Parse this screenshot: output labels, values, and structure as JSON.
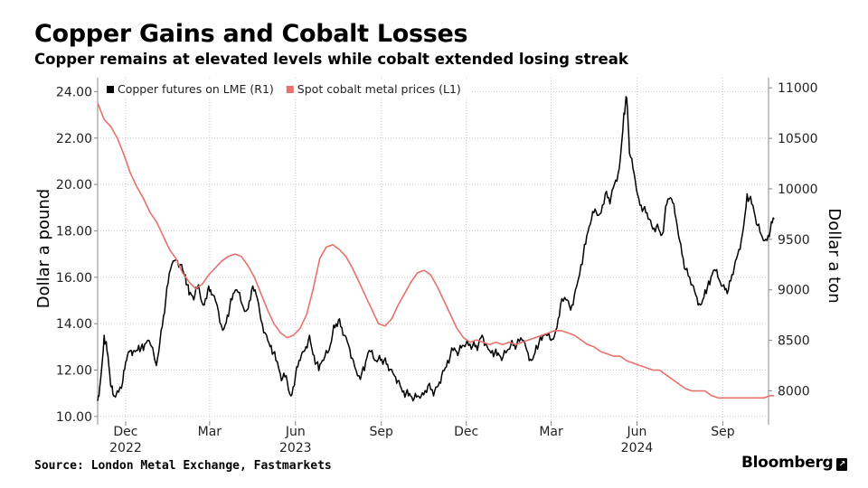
{
  "header": {
    "title": "Copper Gains and Cobalt Losses",
    "subtitle": "Copper remains at elevated levels while cobalt extended losing streak"
  },
  "footer": {
    "source": "Source: London Metal Exchange, Fastmarkets",
    "brand": "Bloomberg",
    "brand_mark": "↗"
  },
  "chart_data": {
    "type": "line",
    "grid": true,
    "legend_placement": "top-left",
    "left_axis": {
      "label": "Dollar a pound",
      "range": [
        9.8,
        24.6
      ],
      "ticks": [
        "10.00",
        "12.00",
        "14.00",
        "16.00",
        "18.00",
        "20.00",
        "22.00",
        "24.00"
      ]
    },
    "right_axis": {
      "label": "Dollar a ton",
      "range": [
        7700,
        11100
      ],
      "ticks": [
        "8000",
        "8500",
        "9000",
        "9500",
        "10000",
        "10500",
        "11000"
      ]
    },
    "x_axis": {
      "range": [
        "2022-11-01",
        "2024-10-20"
      ],
      "ticks": [
        {
          "date": "2022-12-01",
          "label": "Dec",
          "year": "2022"
        },
        {
          "date": "2023-03-01",
          "label": "Mar",
          "year": ""
        },
        {
          "date": "2023-06-01",
          "label": "Jun",
          "year": "2023"
        },
        {
          "date": "2023-09-01",
          "label": "Sep",
          "year": ""
        },
        {
          "date": "2023-12-01",
          "label": "Dec",
          "year": ""
        },
        {
          "date": "2024-03-01",
          "label": "Mar",
          "year": ""
        },
        {
          "date": "2024-06-01",
          "label": "Jun",
          "year": "2024"
        },
        {
          "date": "2024-09-01",
          "label": "Sep",
          "year": ""
        }
      ]
    },
    "series": [
      {
        "name": "Copper futures on LME (R1)",
        "axis": "right",
        "color": "#000000",
        "points": [
          [
            "2022-11-01",
            7900
          ],
          [
            "2022-11-04",
            8100
          ],
          [
            "2022-11-08",
            8550
          ],
          [
            "2022-11-11",
            8400
          ],
          [
            "2022-11-15",
            8050
          ],
          [
            "2022-11-18",
            7950
          ],
          [
            "2022-11-22",
            8000
          ],
          [
            "2022-11-28",
            8100
          ],
          [
            "2022-12-02",
            8300
          ],
          [
            "2022-12-06",
            8400
          ],
          [
            "2022-12-10",
            8400
          ],
          [
            "2022-12-15",
            8450
          ],
          [
            "2022-12-20",
            8400
          ],
          [
            "2022-12-26",
            8500
          ],
          [
            "2023-01-03",
            8250
          ],
          [
            "2023-01-08",
            8600
          ],
          [
            "2023-01-13",
            8900
          ],
          [
            "2023-01-18",
            9200
          ],
          [
            "2023-01-24",
            9300
          ],
          [
            "2023-01-30",
            9250
          ],
          [
            "2023-02-03",
            9150
          ],
          [
            "2023-02-07",
            8950
          ],
          [
            "2023-02-12",
            8900
          ],
          [
            "2023-02-17",
            9050
          ],
          [
            "2023-02-22",
            8850
          ],
          [
            "2023-02-27",
            9000
          ],
          [
            "2023-03-03",
            8950
          ],
          [
            "2023-03-09",
            8850
          ],
          [
            "2023-03-15",
            8600
          ],
          [
            "2023-03-20",
            8750
          ],
          [
            "2023-03-25",
            8900
          ],
          [
            "2023-03-30",
            9000
          ],
          [
            "2023-04-05",
            8850
          ],
          [
            "2023-04-10",
            8800
          ],
          [
            "2023-04-15",
            9000
          ],
          [
            "2023-04-20",
            8950
          ],
          [
            "2023-04-25",
            8700
          ],
          [
            "2023-05-01",
            8550
          ],
          [
            "2023-05-06",
            8450
          ],
          [
            "2023-05-11",
            8300
          ],
          [
            "2023-05-17",
            8100
          ],
          [
            "2023-05-22",
            8150
          ],
          [
            "2023-05-27",
            7950
          ],
          [
            "2023-06-01",
            8150
          ],
          [
            "2023-06-06",
            8300
          ],
          [
            "2023-06-11",
            8400
          ],
          [
            "2023-06-16",
            8550
          ],
          [
            "2023-06-21",
            8350
          ],
          [
            "2023-06-26",
            8200
          ],
          [
            "2023-07-01",
            8300
          ],
          [
            "2023-07-07",
            8400
          ],
          [
            "2023-07-12",
            8650
          ],
          [
            "2023-07-17",
            8700
          ],
          [
            "2023-07-22",
            8550
          ],
          [
            "2023-07-28",
            8450
          ],
          [
            "2023-08-02",
            8300
          ],
          [
            "2023-08-08",
            8150
          ],
          [
            "2023-08-14",
            8200
          ],
          [
            "2023-08-19",
            8400
          ],
          [
            "2023-08-25",
            8300
          ],
          [
            "2023-08-30",
            8350
          ],
          [
            "2023-09-04",
            8300
          ],
          [
            "2023-09-09",
            8200
          ],
          [
            "2023-09-15",
            8150
          ],
          [
            "2023-09-20",
            8100
          ],
          [
            "2023-09-25",
            8000
          ],
          [
            "2023-09-30",
            7950
          ],
          [
            "2023-10-05",
            7900
          ],
          [
            "2023-10-10",
            7950
          ],
          [
            "2023-10-15",
            7980
          ],
          [
            "2023-10-21",
            8050
          ],
          [
            "2023-10-27",
            7950
          ],
          [
            "2023-11-01",
            8050
          ],
          [
            "2023-11-06",
            8200
          ],
          [
            "2023-11-11",
            8300
          ],
          [
            "2023-11-17",
            8400
          ],
          [
            "2023-11-22",
            8350
          ],
          [
            "2023-11-27",
            8450
          ],
          [
            "2023-12-02",
            8500
          ],
          [
            "2023-12-08",
            8450
          ],
          [
            "2023-12-13",
            8400
          ],
          [
            "2023-12-18",
            8550
          ],
          [
            "2023-12-23",
            8450
          ],
          [
            "2023-12-29",
            8400
          ],
          [
            "2024-01-03",
            8350
          ],
          [
            "2024-01-08",
            8300
          ],
          [
            "2024-01-14",
            8400
          ],
          [
            "2024-01-19",
            8500
          ],
          [
            "2024-01-24",
            8450
          ],
          [
            "2024-01-30",
            8500
          ],
          [
            "2024-02-04",
            8400
          ],
          [
            "2024-02-09",
            8300
          ],
          [
            "2024-02-14",
            8450
          ],
          [
            "2024-02-20",
            8500
          ],
          [
            "2024-02-25",
            8550
          ],
          [
            "2024-03-01",
            8500
          ],
          [
            "2024-03-06",
            8600
          ],
          [
            "2024-03-11",
            8850
          ],
          [
            "2024-03-17",
            8900
          ],
          [
            "2024-03-22",
            8800
          ],
          [
            "2024-03-27",
            9000
          ],
          [
            "2024-04-02",
            9250
          ],
          [
            "2024-04-07",
            9450
          ],
          [
            "2024-04-12",
            9650
          ],
          [
            "2024-04-17",
            9800
          ],
          [
            "2024-04-22",
            9750
          ],
          [
            "2024-04-28",
            9950
          ],
          [
            "2024-05-03",
            9850
          ],
          [
            "2024-05-08",
            10050
          ],
          [
            "2024-05-13",
            10200
          ],
          [
            "2024-05-18",
            10750
          ],
          [
            "2024-05-21",
            10900
          ],
          [
            "2024-05-24",
            10350
          ],
          [
            "2024-05-29",
            10150
          ],
          [
            "2024-06-03",
            9900
          ],
          [
            "2024-06-08",
            9800
          ],
          [
            "2024-06-13",
            9700
          ],
          [
            "2024-06-18",
            9600
          ],
          [
            "2024-06-23",
            9650
          ],
          [
            "2024-06-28",
            9550
          ],
          [
            "2024-07-03",
            9850
          ],
          [
            "2024-07-08",
            9900
          ],
          [
            "2024-07-13",
            9700
          ],
          [
            "2024-07-18",
            9450
          ],
          [
            "2024-07-23",
            9200
          ],
          [
            "2024-07-29",
            9050
          ],
          [
            "2024-08-03",
            8950
          ],
          [
            "2024-08-08",
            8850
          ],
          [
            "2024-08-13",
            9000
          ],
          [
            "2024-08-18",
            9050
          ],
          [
            "2024-08-23",
            9200
          ],
          [
            "2024-08-28",
            9100
          ],
          [
            "2024-09-02",
            9050
          ],
          [
            "2024-09-07",
            9000
          ],
          [
            "2024-09-12",
            9150
          ],
          [
            "2024-09-17",
            9350
          ],
          [
            "2024-09-22",
            9550
          ],
          [
            "2024-09-27",
            9950
          ],
          [
            "2024-10-02",
            9850
          ],
          [
            "2024-10-07",
            9650
          ],
          [
            "2024-10-12",
            9550
          ],
          [
            "2024-10-17",
            9500
          ],
          [
            "2024-10-22",
            9600
          ],
          [
            "2024-10-26",
            9700
          ]
        ]
      },
      {
        "name": "Spot cobalt metal prices (L1)",
        "axis": "left",
        "color": "#e8716c",
        "points": [
          [
            "2022-11-01",
            23.5
          ],
          [
            "2022-11-08",
            22.8
          ],
          [
            "2022-11-15",
            22.5
          ],
          [
            "2022-11-22",
            22.0
          ],
          [
            "2022-11-29",
            21.3
          ],
          [
            "2022-12-06",
            20.5
          ],
          [
            "2022-12-13",
            19.9
          ],
          [
            "2022-12-20",
            19.4
          ],
          [
            "2022-12-27",
            18.8
          ],
          [
            "2023-01-03",
            18.4
          ],
          [
            "2023-01-10",
            17.8
          ],
          [
            "2023-01-17",
            17.2
          ],
          [
            "2023-01-24",
            16.8
          ],
          [
            "2023-01-31",
            16.2
          ],
          [
            "2023-02-07",
            15.8
          ],
          [
            "2023-02-14",
            15.5
          ],
          [
            "2023-02-21",
            15.7
          ],
          [
            "2023-02-28",
            16.1
          ],
          [
            "2023-03-07",
            16.4
          ],
          [
            "2023-03-14",
            16.7
          ],
          [
            "2023-03-21",
            16.9
          ],
          [
            "2023-03-28",
            17.0
          ],
          [
            "2023-04-04",
            16.9
          ],
          [
            "2023-04-11",
            16.5
          ],
          [
            "2023-04-18",
            16.0
          ],
          [
            "2023-04-25",
            15.3
          ],
          [
            "2023-05-02",
            14.6
          ],
          [
            "2023-05-09",
            14.0
          ],
          [
            "2023-05-16",
            13.6
          ],
          [
            "2023-05-23",
            13.4
          ],
          [
            "2023-05-30",
            13.5
          ],
          [
            "2023-06-06",
            13.8
          ],
          [
            "2023-06-13",
            14.4
          ],
          [
            "2023-06-20",
            15.5
          ],
          [
            "2023-06-27",
            16.8
          ],
          [
            "2023-07-04",
            17.3
          ],
          [
            "2023-07-11",
            17.4
          ],
          [
            "2023-07-18",
            17.2
          ],
          [
            "2023-07-25",
            16.9
          ],
          [
            "2023-08-01",
            16.4
          ],
          [
            "2023-08-08",
            15.8
          ],
          [
            "2023-08-15",
            15.2
          ],
          [
            "2023-08-22",
            14.6
          ],
          [
            "2023-08-29",
            14.0
          ],
          [
            "2023-09-05",
            13.9
          ],
          [
            "2023-09-12",
            14.2
          ],
          [
            "2023-09-19",
            14.8
          ],
          [
            "2023-09-26",
            15.3
          ],
          [
            "2023-10-03",
            15.8
          ],
          [
            "2023-10-10",
            16.2
          ],
          [
            "2023-10-17",
            16.3
          ],
          [
            "2023-10-24",
            16.1
          ],
          [
            "2023-10-31",
            15.6
          ],
          [
            "2023-11-07",
            15.0
          ],
          [
            "2023-11-14",
            14.4
          ],
          [
            "2023-11-21",
            13.8
          ],
          [
            "2023-11-28",
            13.4
          ],
          [
            "2023-12-05",
            13.2
          ],
          [
            "2023-12-12",
            13.3
          ],
          [
            "2023-12-19",
            13.2
          ],
          [
            "2023-12-26",
            13.1
          ],
          [
            "2024-01-02",
            13.2
          ],
          [
            "2024-01-09",
            13.1
          ],
          [
            "2024-01-16",
            13.2
          ],
          [
            "2024-01-23",
            13.1
          ],
          [
            "2024-01-30",
            13.2
          ],
          [
            "2024-02-06",
            13.3
          ],
          [
            "2024-02-13",
            13.4
          ],
          [
            "2024-02-20",
            13.5
          ],
          [
            "2024-02-27",
            13.6
          ],
          [
            "2024-03-05",
            13.7
          ],
          [
            "2024-03-12",
            13.7
          ],
          [
            "2024-03-19",
            13.6
          ],
          [
            "2024-03-26",
            13.5
          ],
          [
            "2024-04-02",
            13.3
          ],
          [
            "2024-04-09",
            13.1
          ],
          [
            "2024-04-16",
            13.0
          ],
          [
            "2024-04-23",
            12.8
          ],
          [
            "2024-04-30",
            12.7
          ],
          [
            "2024-05-07",
            12.6
          ],
          [
            "2024-05-14",
            12.6
          ],
          [
            "2024-05-21",
            12.4
          ],
          [
            "2024-05-28",
            12.3
          ],
          [
            "2024-06-04",
            12.2
          ],
          [
            "2024-06-11",
            12.1
          ],
          [
            "2024-06-18",
            12.0
          ],
          [
            "2024-06-25",
            12.0
          ],
          [
            "2024-07-02",
            11.8
          ],
          [
            "2024-07-09",
            11.6
          ],
          [
            "2024-07-16",
            11.4
          ],
          [
            "2024-07-23",
            11.2
          ],
          [
            "2024-07-30",
            11.1
          ],
          [
            "2024-08-06",
            11.1
          ],
          [
            "2024-08-13",
            11.1
          ],
          [
            "2024-08-20",
            10.9
          ],
          [
            "2024-08-27",
            10.8
          ],
          [
            "2024-09-03",
            10.8
          ],
          [
            "2024-09-10",
            10.8
          ],
          [
            "2024-09-17",
            10.8
          ],
          [
            "2024-09-24",
            10.8
          ],
          [
            "2024-10-01",
            10.8
          ],
          [
            "2024-10-08",
            10.8
          ],
          [
            "2024-10-15",
            10.8
          ],
          [
            "2024-10-22",
            10.9
          ],
          [
            "2024-10-26",
            10.9
          ]
        ]
      }
    ]
  }
}
